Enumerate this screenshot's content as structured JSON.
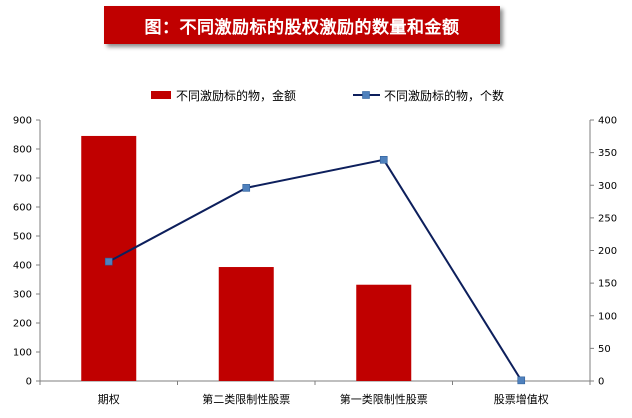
{
  "title": "图：不同激励标的股权激励的数量和金额",
  "colors": {
    "bar": "#c00000",
    "line": "#0d1f5c",
    "marker": "#4f81bd",
    "banner": "#c00000"
  },
  "chart_data": {
    "type": "bar",
    "categories": [
      "期权",
      "第二类限制性股票",
      "第一类限制性股票",
      "股票增值权"
    ],
    "series": [
      {
        "name": "不同激励标的物，金额",
        "type": "bar",
        "axis": "left",
        "values": [
          845,
          393,
          332,
          0
        ]
      },
      {
        "name": "不同激励标的物，个数",
        "type": "line",
        "axis": "right",
        "values": [
          183,
          296,
          339,
          1
        ]
      }
    ],
    "ylim": [
      0,
      900
    ],
    "y2lim": [
      0,
      400
    ],
    "yticks": [
      "0",
      "100",
      "200",
      "300",
      "400",
      "500",
      "600",
      "700",
      "800",
      "900"
    ],
    "y2ticks": [
      "0",
      "50",
      "100",
      "150",
      "200",
      "250",
      "300",
      "350",
      "400"
    ],
    "legend_position": "top",
    "grid": false
  }
}
